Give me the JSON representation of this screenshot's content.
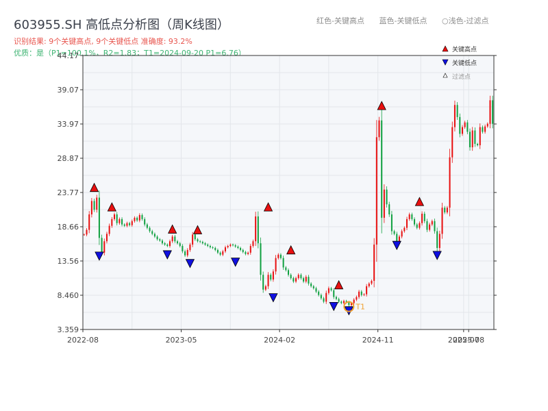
{
  "header": {
    "title": "603955.SH 高低点分析图（周K线图）",
    "subtitle": "识别结果: 9个关键高点, 9个关键低点  准确度: 93.2%",
    "quality": "优质：是（P1=100.1%，R2=1.83；T1=2024-09-20 P1=6.76）",
    "legend_high": "红色-关键高点",
    "legend_low": "蓝色-关键低点",
    "legend_filter": "○浅色-过滤点"
  },
  "legend": {
    "high": "关键高点",
    "low": "关键低点",
    "filter": "过滤点"
  },
  "colors": {
    "up": "#e81010",
    "down": "#10a040",
    "high_marker": "#e81010",
    "low_marker": "#1010e0",
    "t1_marker": "#f0a030"
  },
  "chart_data": {
    "type": "candlestick",
    "y_ticks": [
      "44.17",
      "39.07",
      "33.97",
      "28.87",
      "23.77",
      "18.66",
      "13.56",
      "8.460",
      "3.359"
    ],
    "ylim": [
      3.359,
      44.17
    ],
    "x_ticks": [
      {
        "label": "2022-08",
        "t": 0
      },
      {
        "label": "2023-05",
        "t": 39
      },
      {
        "label": "2024-02",
        "t": 78
      },
      {
        "label": "2024-11",
        "t": 117
      },
      {
        "label": "2025-07",
        "t": 151
      },
      {
        "label": "2025-08",
        "t": 153
      }
    ],
    "close": [
      17.5,
      18.2,
      20.5,
      22.5,
      21.2,
      23.0,
      17.0,
      14.8,
      16.5,
      17.6,
      18.8,
      19.8,
      20.5,
      19.2,
      19.8,
      19.0,
      18.8,
      19.2,
      18.9,
      19.5,
      20.0,
      19.6,
      20.4,
      19.8,
      19.0,
      18.5,
      18.0,
      17.6,
      17.2,
      16.8,
      16.6,
      16.2,
      16.0,
      15.8,
      16.5,
      17.2,
      16.5,
      16.2,
      15.8,
      15.0,
      14.4,
      15.2,
      16.0,
      17.5,
      16.8,
      16.5,
      16.4,
      16.2,
      16.0,
      15.8,
      15.6,
      15.5,
      15.2,
      14.8,
      14.5,
      15.0,
      15.6,
      15.8,
      16.0,
      15.9,
      15.7,
      15.5,
      15.2,
      14.9,
      14.6,
      14.8,
      15.8,
      16.5,
      20.2,
      16.2,
      11.5,
      9.3,
      9.8,
      11.5,
      10.8,
      12.0,
      14.0,
      14.5,
      14.0,
      12.6,
      12.2,
      11.5,
      11.0,
      10.5,
      11.0,
      11.5,
      11.0,
      10.5,
      11.2,
      10.2,
      9.8,
      9.5,
      9.0,
      8.5,
      8.0,
      7.5,
      8.8,
      9.5,
      9.2,
      8.2,
      7.9,
      7.5,
      7.3,
      7.6,
      7.4,
      7.0,
      7.3,
      7.8,
      8.2,
      9.0,
      8.5,
      8.6,
      9.8,
      10.2,
      10.6,
      16.0,
      32.0,
      34.5,
      20.0,
      24.2,
      22.0,
      20.5,
      18.0,
      17.6,
      16.5,
      17.2,
      18.0,
      18.5,
      19.8,
      20.5,
      19.8,
      19.0,
      18.5,
      19.2,
      20.6,
      19.5,
      18.2,
      19.0,
      19.5,
      18.0,
      15.5,
      17.6,
      21.5,
      20.8,
      21.5,
      29.0,
      33.5,
      36.8,
      35.0,
      32.5,
      33.5,
      34.2,
      32.8,
      30.5,
      33.0,
      31.0,
      30.8,
      33.5,
      32.8,
      33.6,
      34.0,
      37.5,
      34.0
    ],
    "high_points": [
      {
        "t": 4,
        "value": 23.9
      },
      {
        "t": 11,
        "value": 21.0
      },
      {
        "t": 35,
        "value": 17.7
      },
      {
        "t": 45,
        "value": 17.6
      },
      {
        "t": 73,
        "value": 21.0
      },
      {
        "t": 82,
        "value": 14.6
      },
      {
        "t": 101,
        "value": 9.4
      },
      {
        "t": 118,
        "value": 36.1
      },
      {
        "t": 133,
        "value": 21.8
      }
    ],
    "low_points": [
      {
        "t": 6,
        "value": 14.9
      },
      {
        "t": 33,
        "value": 15.1
      },
      {
        "t": 42,
        "value": 13.8
      },
      {
        "t": 60,
        "value": 14.0
      },
      {
        "t": 75,
        "value": 8.7
      },
      {
        "t": 99,
        "value": 7.4
      },
      {
        "t": 105,
        "value": 6.76
      },
      {
        "t": 124,
        "value": 16.5
      },
      {
        "t": 140,
        "value": 15.0
      }
    ],
    "t1": {
      "t": 105,
      "value": 6.76,
      "label": "T1"
    }
  }
}
